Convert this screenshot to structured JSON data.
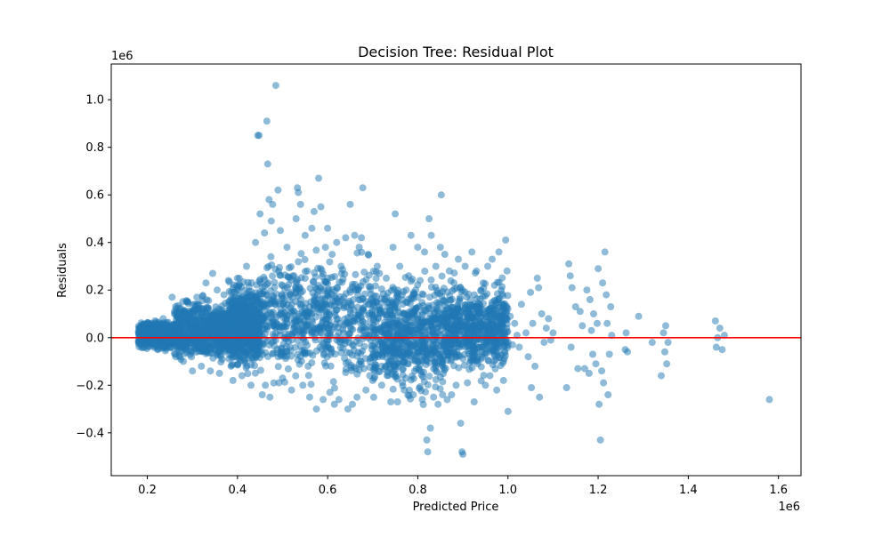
{
  "chart_data": {
    "type": "scatter",
    "title": "Decision Tree: Residual Plot",
    "xlabel": "Predicted Price",
    "ylabel": "Residuals",
    "x_offset_text": "1e6",
    "y_offset_text": "1e6",
    "x_scale_factor": 1000000,
    "y_scale_factor": 1000000,
    "xlim": [
      120000,
      1650000
    ],
    "ylim": [
      -580000,
      1150000
    ],
    "x_ticks": [
      200000,
      400000,
      600000,
      800000,
      1000000,
      1200000,
      1400000,
      1600000
    ],
    "x_tick_labels": [
      "0.2",
      "0.4",
      "0.6",
      "0.8",
      "1.0",
      "1.2",
      "1.4",
      "1.6"
    ],
    "y_ticks": [
      -400000,
      -200000,
      0,
      200000,
      400000,
      600000,
      800000,
      1000000
    ],
    "y_tick_labels": [
      "−0.4",
      "−0.2",
      "0.0",
      "0.2",
      "0.4",
      "0.6",
      "0.8",
      "1.0"
    ],
    "grid": false,
    "point_color": "#1f77b4",
    "point_alpha": 0.5,
    "reference_line": {
      "y": 0,
      "color": "#ff0000"
    },
    "density_bands": [
      {
        "x_range": [
          180000,
          260000
        ],
        "y_range": [
          -60000,
          80000
        ]
      },
      {
        "x_range": [
          260000,
          380000
        ],
        "y_range": [
          -140000,
          200000
        ]
      },
      {
        "x_range": [
          380000,
          450000
        ],
        "y_range": [
          -180000,
          280000
        ]
      },
      {
        "x_range": [
          450000,
          700000
        ],
        "y_range": [
          -260000,
          420000
        ]
      },
      {
        "x_range": [
          700000,
          860000
        ],
        "y_range": [
          -300000,
          320000
        ]
      },
      {
        "x_range": [
          860000,
          1000000
        ],
        "y_range": [
          -200000,
          280000
        ]
      }
    ],
    "points": [
      [
        185000,
        -10000
      ],
      [
        190000,
        5000
      ],
      [
        200000,
        20000
      ],
      [
        205000,
        -20000
      ],
      [
        210000,
        35000
      ],
      [
        215000,
        -30000
      ],
      [
        220000,
        60000
      ],
      [
        225000,
        10000
      ],
      [
        230000,
        -45000
      ],
      [
        235000,
        80000
      ],
      [
        240000,
        -55000
      ],
      [
        245000,
        40000
      ],
      [
        255000,
        170000
      ],
      [
        262000,
        -70000
      ],
      [
        270000,
        110000
      ],
      [
        280000,
        -100000
      ],
      [
        290000,
        150000
      ],
      [
        300000,
        -140000
      ],
      [
        310000,
        170000
      ],
      [
        320000,
        -120000
      ],
      [
        330000,
        230000
      ],
      [
        340000,
        -140000
      ],
      [
        345000,
        270000
      ],
      [
        355000,
        200000
      ],
      [
        360000,
        -150000
      ],
      [
        370000,
        180000
      ],
      [
        380000,
        240000
      ],
      [
        390000,
        -180000
      ],
      [
        400000,
        250000
      ],
      [
        410000,
        -160000
      ],
      [
        420000,
        300000
      ],
      [
        430000,
        -200000
      ],
      [
        440000,
        400000
      ],
      [
        445000,
        850000
      ],
      [
        448000,
        850000
      ],
      [
        450000,
        520000
      ],
      [
        455000,
        -240000
      ],
      [
        460000,
        440000
      ],
      [
        462000,
        -200000
      ],
      [
        465000,
        910000
      ],
      [
        467000,
        730000
      ],
      [
        470000,
        580000
      ],
      [
        472000,
        -250000
      ],
      [
        475000,
        490000
      ],
      [
        478000,
        560000
      ],
      [
        485000,
        1060000
      ],
      [
        490000,
        620000
      ],
      [
        492000,
        -190000
      ],
      [
        495000,
        450000
      ],
      [
        500000,
        -170000
      ],
      [
        510000,
        380000
      ],
      [
        520000,
        -220000
      ],
      [
        530000,
        500000
      ],
      [
        533000,
        630000
      ],
      [
        535000,
        610000
      ],
      [
        540000,
        560000
      ],
      [
        545000,
        -200000
      ],
      [
        550000,
        430000
      ],
      [
        555000,
        280000
      ],
      [
        560000,
        -250000
      ],
      [
        565000,
        460000
      ],
      [
        570000,
        530000
      ],
      [
        575000,
        -300000
      ],
      [
        580000,
        670000
      ],
      [
        585000,
        550000
      ],
      [
        590000,
        -260000
      ],
      [
        595000,
        380000
      ],
      [
        600000,
        460000
      ],
      [
        605000,
        -230000
      ],
      [
        610000,
        350000
      ],
      [
        615000,
        -280000
      ],
      [
        620000,
        400000
      ],
      [
        625000,
        -260000
      ],
      [
        630000,
        300000
      ],
      [
        640000,
        420000
      ],
      [
        645000,
        -300000
      ],
      [
        650000,
        560000
      ],
      [
        655000,
        -280000
      ],
      [
        660000,
        430000
      ],
      [
        665000,
        -250000
      ],
      [
        670000,
        380000
      ],
      [
        675000,
        420000
      ],
      [
        678000,
        630000
      ],
      [
        685000,
        -220000
      ],
      [
        690000,
        350000
      ],
      [
        700000,
        -180000
      ],
      [
        710000,
        300000
      ],
      [
        715000,
        270000
      ],
      [
        720000,
        -200000
      ],
      [
        730000,
        250000
      ],
      [
        740000,
        -270000
      ],
      [
        745000,
        380000
      ],
      [
        750000,
        520000
      ],
      [
        755000,
        -270000
      ],
      [
        760000,
        300000
      ],
      [
        770000,
        -220000
      ],
      [
        780000,
        260000
      ],
      [
        785000,
        430000
      ],
      [
        790000,
        -240000
      ],
      [
        800000,
        380000
      ],
      [
        805000,
        240000
      ],
      [
        810000,
        -260000
      ],
      [
        815000,
        360000
      ],
      [
        820000,
        -430000
      ],
      [
        822000,
        -480000
      ],
      [
        825000,
        500000
      ],
      [
        828000,
        -380000
      ],
      [
        830000,
        430000
      ],
      [
        835000,
        -250000
      ],
      [
        840000,
        300000
      ],
      [
        845000,
        -280000
      ],
      [
        850000,
        380000
      ],
      [
        852000,
        600000
      ],
      [
        855000,
        -240000
      ],
      [
        860000,
        350000
      ],
      [
        865000,
        -260000
      ],
      [
        870000,
        280000
      ],
      [
        875000,
        -240000
      ],
      [
        880000,
        230000
      ],
      [
        885000,
        -200000
      ],
      [
        890000,
        330000
      ],
      [
        895000,
        -360000
      ],
      [
        898000,
        -480000
      ],
      [
        900000,
        -490000
      ],
      [
        905000,
        300000
      ],
      [
        910000,
        -190000
      ],
      [
        920000,
        360000
      ],
      [
        925000,
        -270000
      ],
      [
        930000,
        280000
      ],
      [
        940000,
        200000
      ],
      [
        945000,
        230000
      ],
      [
        950000,
        -200000
      ],
      [
        955000,
        300000
      ],
      [
        960000,
        -160000
      ],
      [
        965000,
        330000
      ],
      [
        970000,
        220000
      ],
      [
        975000,
        -220000
      ],
      [
        980000,
        360000
      ],
      [
        985000,
        200000
      ],
      [
        990000,
        -180000
      ],
      [
        995000,
        410000
      ],
      [
        998000,
        280000
      ],
      [
        1000000,
        -310000
      ],
      [
        1005000,
        90000
      ],
      [
        1010000,
        -30000
      ],
      [
        1015000,
        60000
      ],
      [
        1020000,
        10000
      ],
      [
        1025000,
        -40000
      ],
      [
        1030000,
        140000
      ],
      [
        1040000,
        20000
      ],
      [
        1045000,
        -80000
      ],
      [
        1050000,
        190000
      ],
      [
        1052000,
        -210000
      ],
      [
        1055000,
        60000
      ],
      [
        1060000,
        -120000
      ],
      [
        1065000,
        250000
      ],
      [
        1068000,
        210000
      ],
      [
        1070000,
        -250000
      ],
      [
        1075000,
        100000
      ],
      [
        1080000,
        -20000
      ],
      [
        1085000,
        40000
      ],
      [
        1090000,
        80000
      ],
      [
        1095000,
        -10000
      ],
      [
        1100000,
        20000
      ],
      [
        1130000,
        -210000
      ],
      [
        1135000,
        310000
      ],
      [
        1138000,
        260000
      ],
      [
        1140000,
        -40000
      ],
      [
        1142000,
        210000
      ],
      [
        1150000,
        130000
      ],
      [
        1155000,
        -130000
      ],
      [
        1160000,
        110000
      ],
      [
        1165000,
        50000
      ],
      [
        1170000,
        -130000
      ],
      [
        1175000,
        200000
      ],
      [
        1180000,
        -150000
      ],
      [
        1182000,
        160000
      ],
      [
        1185000,
        30000
      ],
      [
        1188000,
        -70000
      ],
      [
        1190000,
        100000
      ],
      [
        1195000,
        -110000
      ],
      [
        1198000,
        60000
      ],
      [
        1200000,
        290000
      ],
      [
        1202000,
        -280000
      ],
      [
        1205000,
        -430000
      ],
      [
        1208000,
        -140000
      ],
      [
        1210000,
        230000
      ],
      [
        1212000,
        -190000
      ],
      [
        1215000,
        360000
      ],
      [
        1218000,
        180000
      ],
      [
        1220000,
        60000
      ],
      [
        1222000,
        -240000
      ],
      [
        1225000,
        -70000
      ],
      [
        1228000,
        130000
      ],
      [
        1230000,
        10000
      ],
      [
        1260000,
        -50000
      ],
      [
        1262000,
        20000
      ],
      [
        1265000,
        -60000
      ],
      [
        1290000,
        90000
      ],
      [
        1320000,
        -20000
      ],
      [
        1340000,
        -160000
      ],
      [
        1345000,
        20000
      ],
      [
        1348000,
        -60000
      ],
      [
        1350000,
        50000
      ],
      [
        1352000,
        -110000
      ],
      [
        1355000,
        -20000
      ],
      [
        1460000,
        70000
      ],
      [
        1462000,
        -40000
      ],
      [
        1465000,
        0
      ],
      [
        1470000,
        40000
      ],
      [
        1475000,
        -50000
      ],
      [
        1480000,
        10000
      ],
      [
        1580000,
        -260000
      ]
    ]
  }
}
